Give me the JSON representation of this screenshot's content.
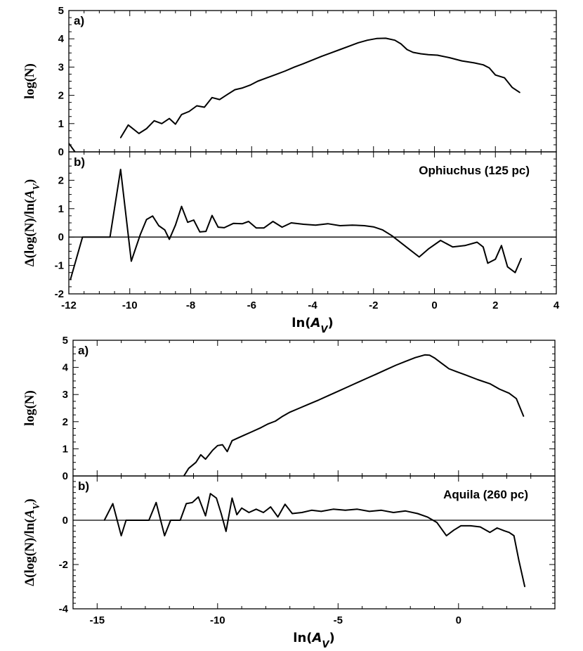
{
  "chart_data": [
    {
      "type": "line",
      "figure": "Ophiuchus",
      "xlabel": "ln(A_V)",
      "xlim": [
        -12,
        4
      ],
      "xticks": [
        -12,
        -10,
        -8,
        -6,
        -4,
        -2,
        0,
        2,
        4
      ],
      "panels": [
        {
          "label": "a)",
          "ylabel": "log(N)",
          "ylim": [
            0,
            5
          ],
          "yticks": [
            0,
            1,
            2,
            3,
            4,
            5
          ],
          "series": [
            {
              "name": "log(N)",
              "x": [
                -12,
                -11.8
              ],
              "y": [
                0.3,
                0
              ]
            },
            {
              "name": "log(N)",
              "x": [
                -10.3,
                -10.05,
                -9.7,
                -9.45,
                -9.2,
                -8.95,
                -8.7,
                -8.5,
                -8.3,
                -8.05,
                -7.8,
                -7.55,
                -7.3,
                -7.05,
                -6.8,
                -6.55,
                -6.3,
                -6.05,
                -5.8,
                -5.5,
                -5.2,
                -4.9,
                -4.6,
                -4.3,
                -4.0,
                -3.7,
                -3.4,
                -3.1,
                -2.8,
                -2.5,
                -2.2,
                -1.9,
                -1.6,
                -1.3,
                -1.1,
                -0.9,
                -0.7,
                -0.45,
                -0.2,
                0.1,
                0.5,
                0.9,
                1.3,
                1.6,
                1.8,
                2.0,
                2.3,
                2.55,
                2.8
              ],
              "y": [
                0.5,
                0.95,
                0.65,
                0.82,
                1.1,
                1.0,
                1.18,
                0.98,
                1.32,
                1.43,
                1.63,
                1.58,
                1.92,
                1.85,
                2.03,
                2.2,
                2.26,
                2.36,
                2.5,
                2.62,
                2.74,
                2.86,
                3.0,
                3.12,
                3.25,
                3.38,
                3.5,
                3.62,
                3.74,
                3.86,
                3.95,
                4.01,
                4.02,
                3.95,
                3.82,
                3.62,
                3.52,
                3.47,
                3.44,
                3.42,
                3.33,
                3.22,
                3.15,
                3.08,
                2.97,
                2.72,
                2.62,
                2.28,
                2.1
              ]
            }
          ]
        },
        {
          "label": "b)",
          "ylabel": "Δ(log(N)/ln(A_V)",
          "ylim": [
            -2,
            3
          ],
          "yticks": [
            -2,
            -1,
            0,
            1,
            2
          ],
          "annotation": "Ophiuchus (125 pc)",
          "reference_line": 0,
          "series": [
            {
              "name": "Δ(log(N))/ln(A_V)",
              "x": [
                -11.95,
                -11.55,
                -10.65,
                -10.3,
                -9.95,
                -9.65,
                -9.45,
                -9.25,
                -9.05,
                -8.85,
                -8.7,
                -8.5,
                -8.3,
                -8.1,
                -7.9,
                -7.7,
                -7.5,
                -7.3,
                -7.1,
                -6.9,
                -6.6,
                -6.3,
                -6.1,
                -5.85,
                -5.6,
                -5.3,
                -5.0,
                -4.7,
                -4.3,
                -3.9,
                -3.5,
                -3.1,
                -2.7,
                -2.3,
                -2.0,
                -1.7,
                -1.4,
                -1.1,
                -0.8,
                -0.5,
                -0.2,
                0.2,
                0.6,
                1.0,
                1.4,
                1.6,
                1.75,
                2.0,
                2.2,
                2.4,
                2.65,
                2.85
              ],
              "y": [
                -1.5,
                0,
                0,
                2.38,
                -0.85,
                0.1,
                0.62,
                0.74,
                0.4,
                0.25,
                -0.08,
                0.42,
                1.08,
                0.52,
                0.6,
                0.18,
                0.2,
                0.76,
                0.35,
                0.33,
                0.48,
                0.47,
                0.55,
                0.32,
                0.32,
                0.55,
                0.35,
                0.5,
                0.45,
                0.42,
                0.47,
                0.4,
                0.42,
                0.4,
                0.36,
                0.25,
                0.05,
                -0.2,
                -0.45,
                -0.7,
                -0.42,
                -0.12,
                -0.35,
                -0.3,
                -0.18,
                -0.35,
                -0.92,
                -0.78,
                -0.3,
                -1.05,
                -1.25,
                -0.75
              ]
            }
          ]
        }
      ]
    },
    {
      "type": "line",
      "figure": "Aquila",
      "xlabel": "ln(A_V)",
      "xlim": [
        -16,
        4
      ],
      "xticks": [
        -15,
        -10,
        -5,
        0
      ],
      "panels": [
        {
          "label": "a)",
          "ylabel": "log(N)",
          "ylim": [
            0,
            5
          ],
          "yticks": [
            0,
            1,
            2,
            3,
            4,
            5
          ],
          "series": [
            {
              "name": "log(N)",
              "x": [
                -11.4,
                -11.2,
                -10.9,
                -10.7,
                -10.5,
                -10.2,
                -10.0,
                -9.8,
                -9.6,
                -9.4,
                -9.2,
                -8.9,
                -8.6,
                -8.2,
                -7.9,
                -7.6,
                -7.3,
                -7.0,
                -6.6,
                -6.2,
                -5.8,
                -5.4,
                -5.0,
                -4.6,
                -4.2,
                -3.8,
                -3.4,
                -3.0,
                -2.6,
                -2.2,
                -1.8,
                -1.4,
                -1.2,
                -1.0,
                -0.7,
                -0.4,
                -0.1,
                0.3,
                0.8,
                1.3,
                1.7,
                2.1,
                2.4,
                2.7
              ],
              "y": [
                0.0,
                0.28,
                0.5,
                0.78,
                0.62,
                0.95,
                1.12,
                1.15,
                0.9,
                1.3,
                1.38,
                1.5,
                1.62,
                1.78,
                1.92,
                2.02,
                2.2,
                2.35,
                2.5,
                2.65,
                2.8,
                2.96,
                3.12,
                3.28,
                3.44,
                3.6,
                3.76,
                3.92,
                4.08,
                4.22,
                4.36,
                4.46,
                4.45,
                4.35,
                4.15,
                3.95,
                3.85,
                3.72,
                3.55,
                3.4,
                3.2,
                3.05,
                2.85,
                2.2
              ]
            }
          ]
        },
        {
          "label": "b)",
          "ylabel": "Δ(log(N)/ln(A_V)",
          "ylim": [
            -4,
            2
          ],
          "yticks": [
            -4,
            -2,
            0
          ],
          "annotation": "Aquila (260 pc)",
          "reference_line": 0,
          "series": [
            {
              "name": "Δ(log(N))/ln(A_V)",
              "x": [
                -14.7,
                -14.35,
                -14.0,
                -13.8,
                -12.85,
                -12.55,
                -12.2,
                -11.95,
                -11.55,
                -11.3,
                -11.05,
                -10.8,
                -10.5,
                -10.3,
                -10.05,
                -9.85,
                -9.65,
                -9.4,
                -9.2,
                -9.0,
                -8.7,
                -8.4,
                -8.1,
                -7.8,
                -7.5,
                -7.2,
                -6.9,
                -6.5,
                -6.1,
                -5.7,
                -5.2,
                -4.7,
                -4.2,
                -3.7,
                -3.2,
                -2.7,
                -2.2,
                -1.7,
                -1.3,
                -0.9,
                -0.5,
                -0.2,
                0.1,
                0.5,
                0.9,
                1.3,
                1.6,
                1.9,
                2.1,
                2.3,
                2.5,
                2.75
              ],
              "y": [
                0,
                0.75,
                -0.7,
                0,
                0,
                0.8,
                -0.7,
                0,
                0,
                0.75,
                0.8,
                1.05,
                0.2,
                1.2,
                1.0,
                0.3,
                -0.5,
                1.0,
                0.25,
                0.55,
                0.35,
                0.5,
                0.35,
                0.6,
                0.15,
                0.72,
                0.3,
                0.35,
                0.45,
                0.4,
                0.5,
                0.45,
                0.5,
                0.4,
                0.45,
                0.35,
                0.42,
                0.3,
                0.15,
                -0.1,
                -0.7,
                -0.45,
                -0.25,
                -0.25,
                -0.3,
                -0.55,
                -0.35,
                -0.48,
                -0.55,
                -0.7,
                -1.8,
                -3.0
              ]
            }
          ]
        }
      ]
    }
  ]
}
